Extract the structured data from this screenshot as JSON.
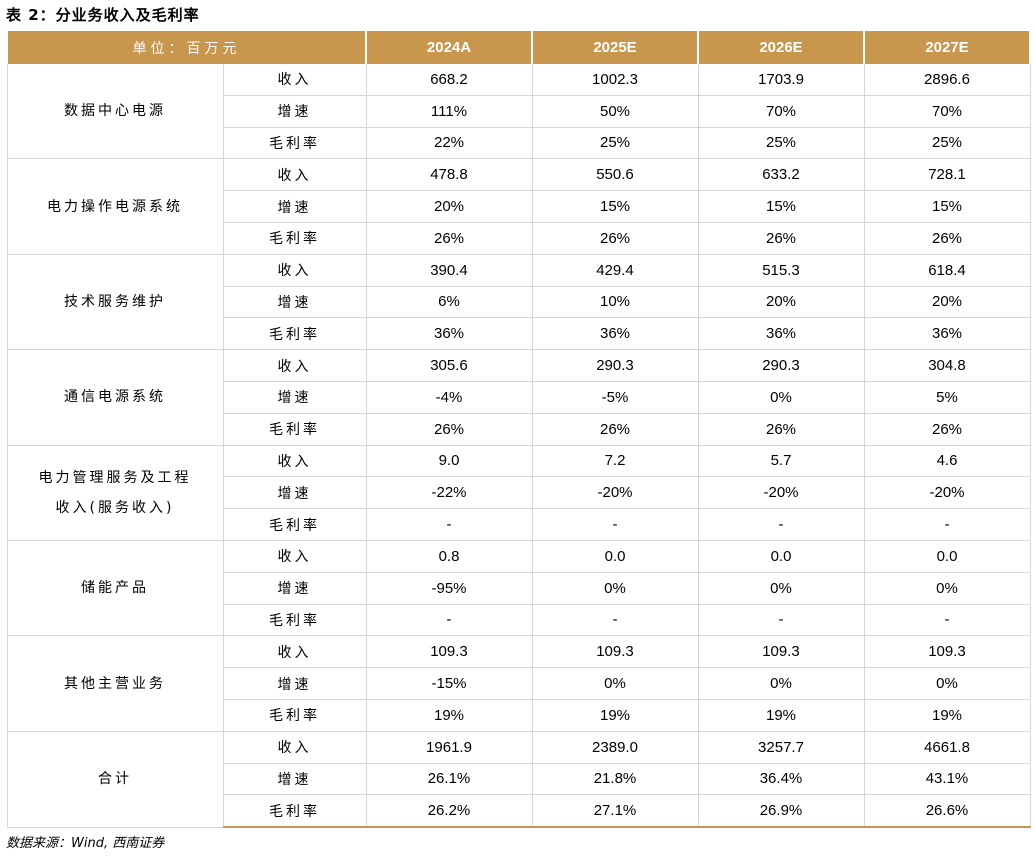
{
  "title": "表 2：分业务收入及毛利率",
  "header": {
    "unit": "单位：百万元",
    "years": [
      "2024A",
      "2025E",
      "2026E",
      "2027E"
    ]
  },
  "metric_labels": [
    "收入",
    "增速",
    "毛利率"
  ],
  "segments": [
    {
      "name_lines": [
        "数据中心电源"
      ],
      "rows": [
        [
          "668.2",
          "1002.3",
          "1703.9",
          "2896.6"
        ],
        [
          "111%",
          "50%",
          "70%",
          "70%"
        ],
        [
          "22%",
          "25%",
          "25%",
          "25%"
        ]
      ]
    },
    {
      "name_lines": [
        "电力操作电源系统"
      ],
      "rows": [
        [
          "478.8",
          "550.6",
          "633.2",
          "728.1"
        ],
        [
          "20%",
          "15%",
          "15%",
          "15%"
        ],
        [
          "26%",
          "26%",
          "26%",
          "26%"
        ]
      ]
    },
    {
      "name_lines": [
        "技术服务维护"
      ],
      "rows": [
        [
          "390.4",
          "429.4",
          "515.3",
          "618.4"
        ],
        [
          "6%",
          "10%",
          "20%",
          "20%"
        ],
        [
          "36%",
          "36%",
          "36%",
          "36%"
        ]
      ]
    },
    {
      "name_lines": [
        "通信电源系统"
      ],
      "rows": [
        [
          "305.6",
          "290.3",
          "290.3",
          "304.8"
        ],
        [
          "-4%",
          "-5%",
          "0%",
          "5%"
        ],
        [
          "26%",
          "26%",
          "26%",
          "26%"
        ]
      ]
    },
    {
      "name_lines": [
        "电力管理服务及工程",
        "收入(服务收入)"
      ],
      "rows": [
        [
          "9.0",
          "7.2",
          "5.7",
          "4.6"
        ],
        [
          "-22%",
          "-20%",
          "-20%",
          "-20%"
        ],
        [
          "-",
          "-",
          "-",
          "-"
        ]
      ]
    },
    {
      "name_lines": [
        "储能产品"
      ],
      "rows": [
        [
          "0.8",
          "0.0",
          "0.0",
          "0.0"
        ],
        [
          "-95%",
          "0%",
          "0%",
          "0%"
        ],
        [
          "-",
          "-",
          "-",
          "-"
        ]
      ]
    },
    {
      "name_lines": [
        "其他主营业务"
      ],
      "rows": [
        [
          "109.3",
          "109.3",
          "109.3",
          "109.3"
        ],
        [
          "-15%",
          "0%",
          "0%",
          "0%"
        ],
        [
          "19%",
          "19%",
          "19%",
          "19%"
        ]
      ]
    },
    {
      "name_lines": [
        "合计"
      ],
      "rows": [
        [
          "1961.9",
          "2389.0",
          "3257.7",
          "4661.8"
        ],
        [
          "26.1%",
          "21.8%",
          "36.4%",
          "43.1%"
        ],
        [
          "26.2%",
          "27.1%",
          "26.9%",
          "26.6%"
        ]
      ]
    }
  ],
  "source": "数据来源：Wind, 西南证券",
  "colors": {
    "header_bg": "#C8964C",
    "header_text": "#FFFFFF",
    "grid": "#D6D6D6"
  }
}
